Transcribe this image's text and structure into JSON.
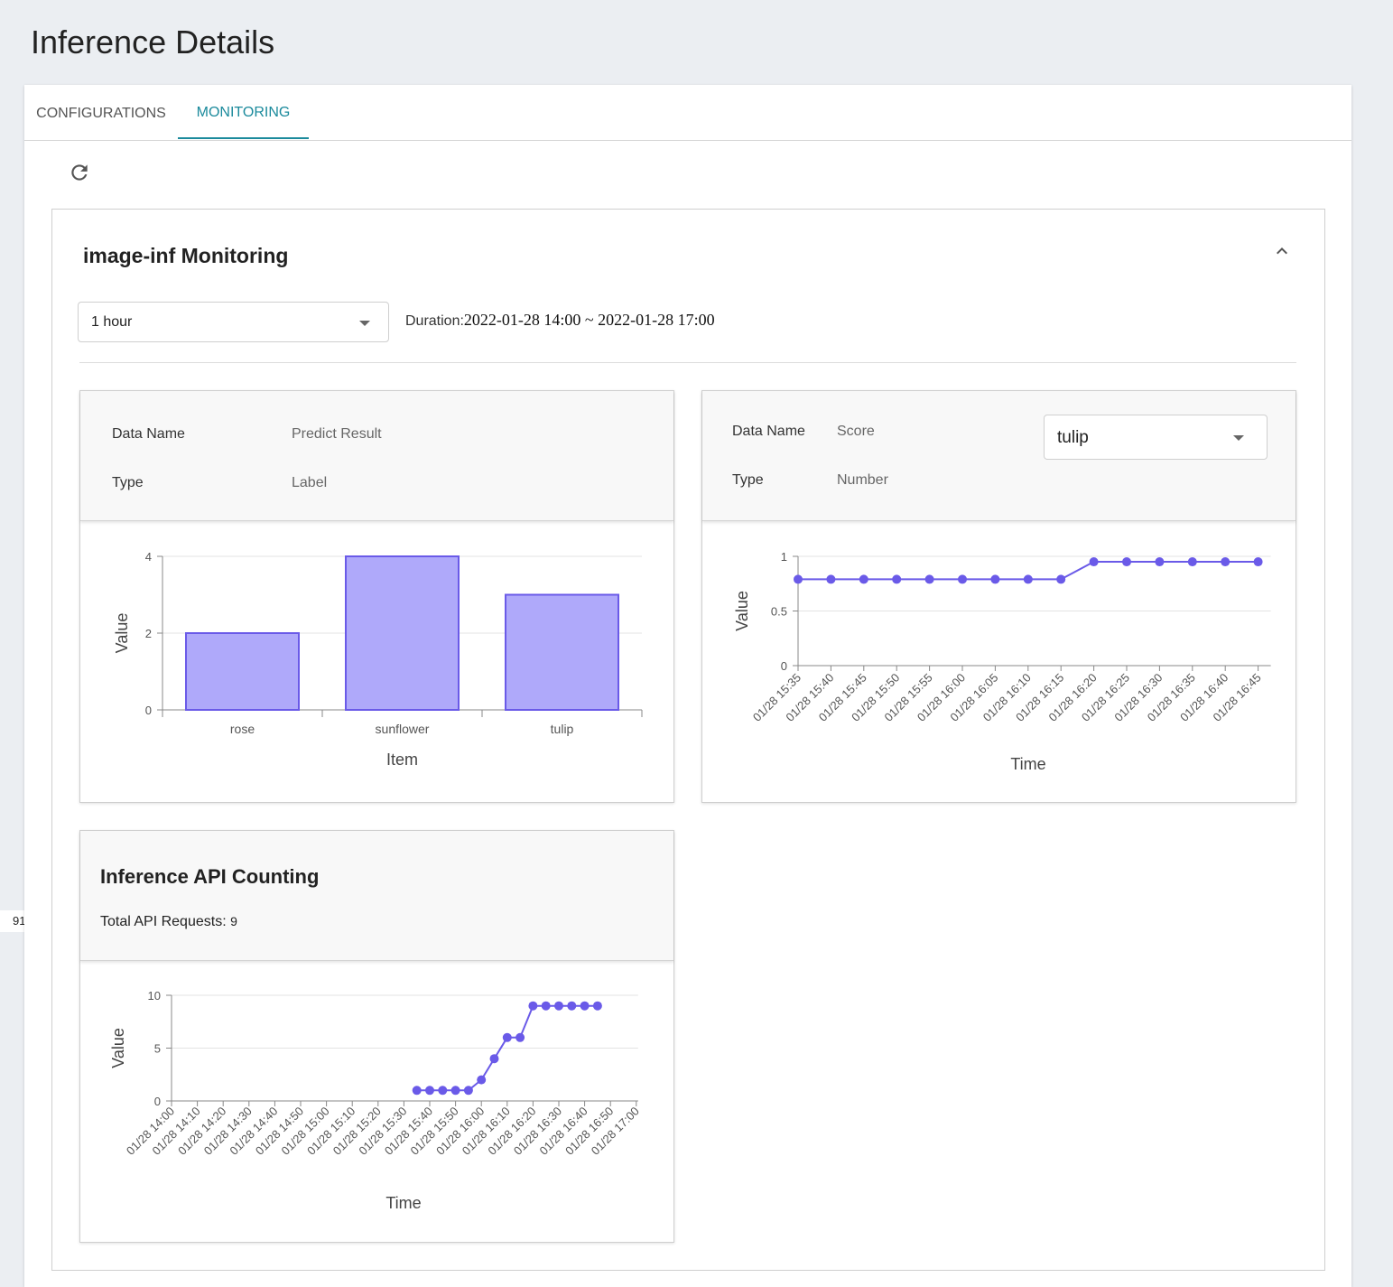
{
  "page": {
    "title": "Inference Details",
    "side_number": "91"
  },
  "tabs": [
    {
      "label": "CONFIGURATIONS"
    },
    {
      "label": "MONITORING"
    }
  ],
  "panel": {
    "title": "image-inf Monitoring",
    "range_select": "1 hour",
    "duration_label": "Duration:",
    "duration_value": "2022-01-28 14:00 ~ 2022-01-28 17:00"
  },
  "card1": {
    "data_name_key": "Data Name",
    "data_name_val": "Predict Result",
    "type_key": "Type",
    "type_val": "Label"
  },
  "card2": {
    "data_name_key": "Data Name",
    "data_name_val": "Score",
    "type_key": "Type",
    "type_val": "Number",
    "select_value": "tulip"
  },
  "card3": {
    "title": "Inference API Counting",
    "total_label": "Total API Requests:",
    "total_value": "9"
  },
  "colors": {
    "accent": "#1b8a9c",
    "series": "#6a5ae8",
    "bar_fill": "#afa9fa"
  },
  "chart_data": [
    {
      "type": "bar",
      "categories": [
        "rose",
        "sunflower",
        "tulip"
      ],
      "values": [
        2,
        4,
        3
      ],
      "xlabel": "Item",
      "ylabel": "Value",
      "ylim": [
        0,
        4
      ],
      "yticks": [
        0,
        2,
        4
      ],
      "grid": true
    },
    {
      "type": "line",
      "x": [
        "01/28 15:35",
        "01/28 15:40",
        "01/28 15:45",
        "01/28 15:50",
        "01/28 15:55",
        "01/28 16:00",
        "01/28 16:05",
        "01/28 16:10",
        "01/28 16:15",
        "01/28 16:20",
        "01/28 16:25",
        "01/28 16:30",
        "01/28 16:35",
        "01/28 16:40",
        "01/28 16:45"
      ],
      "values": [
        0.79,
        0.79,
        0.79,
        0.79,
        0.79,
        0.79,
        0.79,
        0.79,
        0.79,
        0.95,
        0.95,
        0.95,
        0.95,
        0.95,
        0.95
      ],
      "xlabel": "Time",
      "ylabel": "Value",
      "ylim": [
        0,
        1
      ],
      "yticks": [
        0,
        0.5,
        1
      ],
      "grid": true
    },
    {
      "type": "line",
      "x": [
        "01/28 14:00",
        "01/28 14:10",
        "01/28 14:20",
        "01/28 14:30",
        "01/28 14:40",
        "01/28 14:50",
        "01/28 15:00",
        "01/28 15:10",
        "01/28 15:20",
        "01/28 15:30",
        "01/28 15:40",
        "01/28 15:50",
        "01/28 16:00",
        "01/28 16:10",
        "01/28 16:20",
        "01/28 16:30",
        "01/28 16:40",
        "01/28 16:50",
        "01/28 17:00"
      ],
      "points": [
        {
          "x": "01/28 15:35",
          "y": 1
        },
        {
          "x": "01/28 15:40",
          "y": 1
        },
        {
          "x": "01/28 15:45",
          "y": 1
        },
        {
          "x": "01/28 15:50",
          "y": 1
        },
        {
          "x": "01/28 15:55",
          "y": 1
        },
        {
          "x": "01/28 16:00",
          "y": 2
        },
        {
          "x": "01/28 16:05",
          "y": 4
        },
        {
          "x": "01/28 16:10",
          "y": 6
        },
        {
          "x": "01/28 16:15",
          "y": 6
        },
        {
          "x": "01/28 16:20",
          "y": 9
        },
        {
          "x": "01/28 16:25",
          "y": 9
        },
        {
          "x": "01/28 16:30",
          "y": 9
        },
        {
          "x": "01/28 16:35",
          "y": 9
        },
        {
          "x": "01/28 16:40",
          "y": 9
        },
        {
          "x": "01/28 16:45",
          "y": 9
        }
      ],
      "xlabel": "Time",
      "ylabel": "Value",
      "ylim": [
        0,
        10
      ],
      "yticks": [
        0,
        5,
        10
      ],
      "grid": true
    }
  ]
}
